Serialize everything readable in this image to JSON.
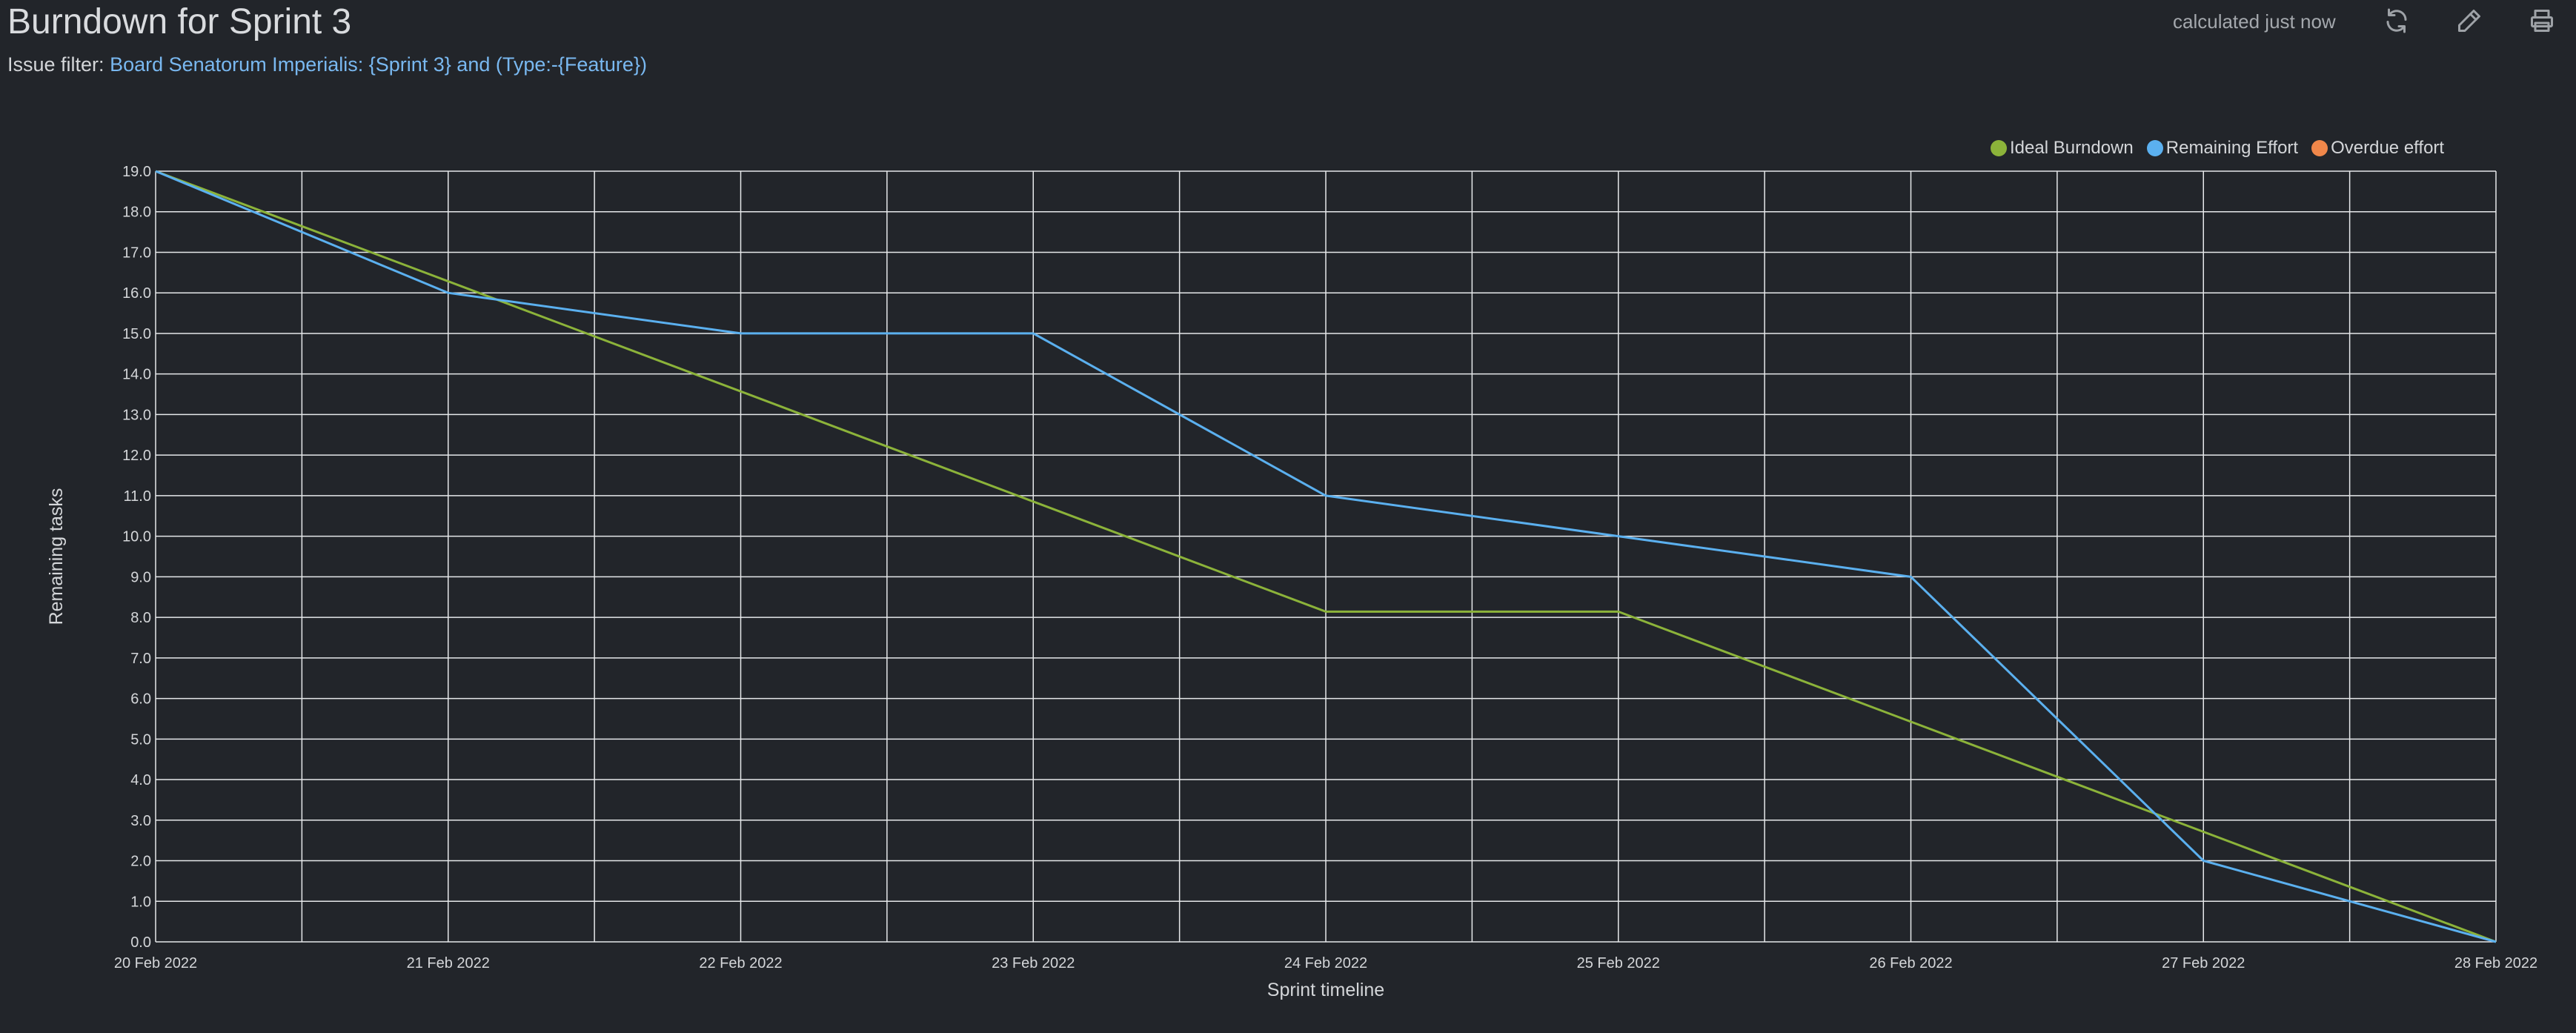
{
  "header": {
    "title": "Burndown for Sprint 3",
    "filter_label": "Issue filter:",
    "filter_value": "Board Senatorum Imperialis: {Sprint 3} and (Type:-{Feature})",
    "calculated_text": "calculated just now",
    "icons": [
      "refresh-icon",
      "pencil-icon",
      "print-icon"
    ]
  },
  "chart_data": {
    "type": "line",
    "xlabel": "Sprint timeline",
    "ylabel": "Remaining tasks",
    "categories": [
      "20 Feb 2022",
      "21 Feb 2022",
      "22 Feb 2022",
      "23 Feb 2022",
      "24 Feb 2022",
      "25 Feb 2022",
      "26 Feb 2022",
      "27 Feb 2022",
      "28 Feb 2022"
    ],
    "ylim": [
      0,
      19
    ],
    "y_ticks": [
      "0.0",
      "1.0",
      "2.0",
      "3.0",
      "4.0",
      "5.0",
      "6.0",
      "7.0",
      "8.0",
      "9.0",
      "10.0",
      "11.0",
      "12.0",
      "13.0",
      "14.0",
      "15.0",
      "16.0",
      "17.0",
      "18.0",
      "19.0"
    ],
    "grid": true,
    "legend_position": "top-right",
    "series": [
      {
        "name": "Ideal Burndown",
        "color": "#8cb33a",
        "x": [
          0,
          4,
          5,
          8
        ],
        "values": [
          19,
          8.14,
          8.14,
          0
        ]
      },
      {
        "name": "Remaining Effort",
        "color": "#5bb0ef",
        "x": [
          0,
          1,
          2,
          3,
          4,
          5,
          6,
          7,
          8
        ],
        "values": [
          19,
          16,
          15,
          15,
          11,
          10,
          9,
          2,
          0
        ]
      },
      {
        "name": "Overdue effort",
        "color": "#f0874a",
        "x": [],
        "values": []
      }
    ]
  }
}
